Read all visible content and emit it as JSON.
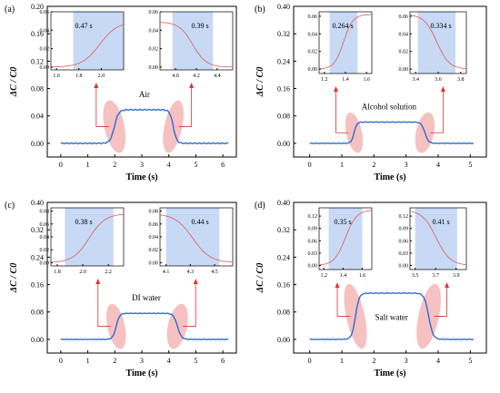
{
  "chart_data": [
    {
      "panel": "(a)",
      "type": "line",
      "xlabel": "Time (s)",
      "ylabel": "ΔC / C0",
      "xlim": [
        -0.5,
        6.5
      ],
      "ylim": [
        -0.02,
        0.2
      ],
      "xticks": [
        0,
        1,
        2,
        3,
        4,
        5,
        6
      ],
      "yticks": [
        0.0,
        0.04,
        0.08,
        0.12,
        0.16,
        0.2
      ],
      "ytick_labels": [
        "0.00",
        "0.04",
        "0.08",
        "0.12",
        "0.16",
        "0.20"
      ],
      "medium": "Air",
      "baseline": 0.0,
      "plateau": 0.049,
      "rise": [
        1.75,
        2.22
      ],
      "fall": [
        3.97,
        4.36
      ],
      "x_end": 6.2,
      "insets": [
        {
          "xlim": [
            1.55,
            2.2
          ],
          "xticks": [
            1.6,
            1.8,
            2.0
          ],
          "ylim": [
            -0.003,
            0.06
          ],
          "yticks": [
            0.0,
            0.02,
            0.04,
            0.06
          ],
          "ytick_labels": [
            "0.00",
            "0.02",
            "0.04",
            "0.06"
          ],
          "shade": [
            1.75,
            2.22
          ],
          "label": "0.47 s",
          "direction": "rise",
          "low": 0.0,
          "high": 0.049
        },
        {
          "xlim": [
            3.85,
            4.55
          ],
          "xticks": [
            4.0,
            4.2,
            4.4
          ],
          "ylim": [
            -0.003,
            0.06
          ],
          "yticks": [
            0.0,
            0.02,
            0.04,
            0.06
          ],
          "ytick_labels": [
            "0.00",
            "0.02",
            "0.04",
            "0.06"
          ],
          "shade": [
            3.97,
            4.36
          ],
          "label": "0.39 s",
          "direction": "fall",
          "low": 0.0,
          "high": 0.049
        }
      ]
    },
    {
      "panel": "(b)",
      "type": "line",
      "xlabel": "Time (s)",
      "ylabel": "ΔC / C0",
      "xlim": [
        -0.5,
        5.5
      ],
      "ylim": [
        -0.04,
        0.4
      ],
      "xticks": [
        0,
        1,
        2,
        3,
        4,
        5
      ],
      "yticks": [
        0.0,
        0.08,
        0.16,
        0.24,
        0.32,
        0.4
      ],
      "ytick_labels": [
        "0.00",
        "0.08",
        "0.16",
        "0.24",
        "0.32",
        "0.40"
      ],
      "medium": "Alcohol solution",
      "baseline": 0.0,
      "plateau": 0.062,
      "rise": [
        1.25,
        1.514
      ],
      "fall": [
        3.42,
        3.754
      ],
      "x_end": 5.1,
      "insets": [
        {
          "xlim": [
            1.15,
            1.65
          ],
          "xticks": [
            1.2,
            1.4,
            1.6
          ],
          "ylim": [
            -0.005,
            0.065
          ],
          "yticks": [
            0.0,
            0.02,
            0.04,
            0.06
          ],
          "ytick_labels": [
            "0.00",
            "0.02",
            "0.04",
            "0.06"
          ],
          "shade": [
            1.25,
            1.514
          ],
          "label": "0.264 s",
          "direction": "rise",
          "low": 0.0,
          "high": 0.062
        },
        {
          "xlim": [
            3.35,
            3.85
          ],
          "xticks": [
            3.4,
            3.6,
            3.8
          ],
          "ylim": [
            -0.005,
            0.065
          ],
          "yticks": [
            0.0,
            0.02,
            0.04,
            0.06
          ],
          "ytick_labels": [
            "0.00",
            "0.02",
            "0.04",
            "0.06"
          ],
          "shade": [
            3.42,
            3.754
          ],
          "label": "0.334 s",
          "direction": "fall",
          "low": 0.0,
          "high": 0.062
        }
      ]
    },
    {
      "panel": "(c)",
      "type": "line",
      "xlabel": "Time (s)",
      "ylabel": "ΔC / C0",
      "xlim": [
        -0.5,
        6.5
      ],
      "ylim": [
        -0.04,
        0.4
      ],
      "xticks": [
        0,
        1,
        2,
        3,
        4,
        5,
        6
      ],
      "yticks": [
        0.0,
        0.08,
        0.16,
        0.24,
        0.32,
        0.4
      ],
      "ytick_labels": [
        "0.00",
        "0.08",
        "0.16",
        "0.24",
        "0.32",
        "0.40"
      ],
      "medium": "DI water",
      "baseline": 0.0,
      "plateau": 0.076,
      "rise": [
        1.86,
        2.24
      ],
      "fall": [
        4.1,
        4.54
      ],
      "x_end": 6.2,
      "insets": [
        {
          "xlim": [
            1.75,
            2.32
          ],
          "xticks": [
            1.8,
            2.0,
            2.2
          ],
          "ylim": [
            -0.005,
            0.085
          ],
          "yticks": [
            0.0,
            0.02,
            0.04,
            0.06,
            0.08
          ],
          "ytick_labels": [
            "0.00",
            "0.02",
            "0.04",
            "0.06",
            "0.08"
          ],
          "shade": [
            1.86,
            2.24
          ],
          "label": "0.38 s",
          "direction": "rise",
          "low": 0.0,
          "high": 0.076
        },
        {
          "xlim": [
            4.05,
            4.65
          ],
          "xticks": [
            4.1,
            4.3,
            4.5
          ],
          "ylim": [
            -0.005,
            0.085
          ],
          "yticks": [
            0.0,
            0.02,
            0.04,
            0.06,
            0.08
          ],
          "ytick_labels": [
            "0.00",
            "0.02",
            "0.04",
            "0.06",
            "0.08"
          ],
          "shade": [
            4.1,
            4.54
          ],
          "label": "0.44 s",
          "direction": "fall",
          "low": 0.0,
          "high": 0.076
        }
      ]
    },
    {
      "panel": "(d)",
      "type": "line",
      "xlabel": "Time (s)",
      "ylabel": "ΔC / C0",
      "xlim": [
        -0.5,
        5.5
      ],
      "ylim": [
        -0.04,
        0.4
      ],
      "xticks": [
        0,
        1,
        2,
        3,
        4,
        5
      ],
      "yticks": [
        0.0,
        0.08,
        0.16,
        0.24,
        0.32,
        0.4
      ],
      "ytick_labels": [
        "0.00",
        "0.08",
        "0.16",
        "0.24",
        "0.32",
        "0.40"
      ],
      "medium": "Salt water",
      "baseline": 0.0,
      "plateau": 0.135,
      "rise": [
        1.25,
        1.6
      ],
      "fall": [
        3.5,
        3.91
      ],
      "x_end": 5.1,
      "insets": [
        {
          "xlim": [
            1.15,
            1.7
          ],
          "xticks": [
            1.2,
            1.4,
            1.6
          ],
          "ylim": [
            -0.01,
            0.14
          ],
          "yticks": [
            0.0,
            0.03,
            0.06,
            0.09,
            0.12
          ],
          "ytick_labels": [
            "0.00",
            "0.03",
            "0.06",
            "0.09",
            "0.12"
          ],
          "shade": [
            1.25,
            1.6
          ],
          "label": "0.35 s",
          "direction": "rise",
          "low": 0.0,
          "high": 0.135
        },
        {
          "xlim": [
            3.45,
            4.0
          ],
          "xticks": [
            3.5,
            3.7,
            3.9
          ],
          "ylim": [
            -0.01,
            0.14
          ],
          "yticks": [
            0.0,
            0.03,
            0.06,
            0.09,
            0.12
          ],
          "ytick_labels": [
            "0.00",
            "0.03",
            "0.06",
            "0.09",
            "0.12"
          ],
          "shade": [
            3.5,
            3.91
          ],
          "label": "0.41 s",
          "direction": "fall",
          "low": 0.0,
          "high": 0.135
        }
      ]
    }
  ],
  "colors": {
    "response_curve": "#2b6cd3",
    "inset_curve": "#e05a5a",
    "inset_shade": "#c7d9f5",
    "highlight": "#f2a7a7",
    "arrow": "#e53030"
  }
}
